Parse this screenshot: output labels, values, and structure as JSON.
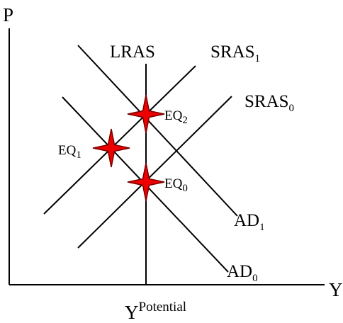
{
  "axes": {
    "y_label": "P",
    "x_label": "Y",
    "x_marker_main": "Y",
    "x_marker_sup": "Potential"
  },
  "curves": {
    "lras": {
      "label": "LRAS"
    },
    "sras1": {
      "label": "SRAS",
      "sub": "1"
    },
    "sras0": {
      "label": "SRAS",
      "sub": "0"
    },
    "ad1": {
      "label": "AD",
      "sub": "1"
    },
    "ad0": {
      "label": "AD",
      "sub": "0"
    }
  },
  "equilibria": {
    "eq0": {
      "label": "EQ",
      "sub": "0"
    },
    "eq1": {
      "label": "EQ",
      "sub": "1"
    },
    "eq2": {
      "label": "EQ",
      "sub": "2"
    }
  },
  "colors": {
    "star_fill": "#ee0000",
    "line": "#000000"
  }
}
